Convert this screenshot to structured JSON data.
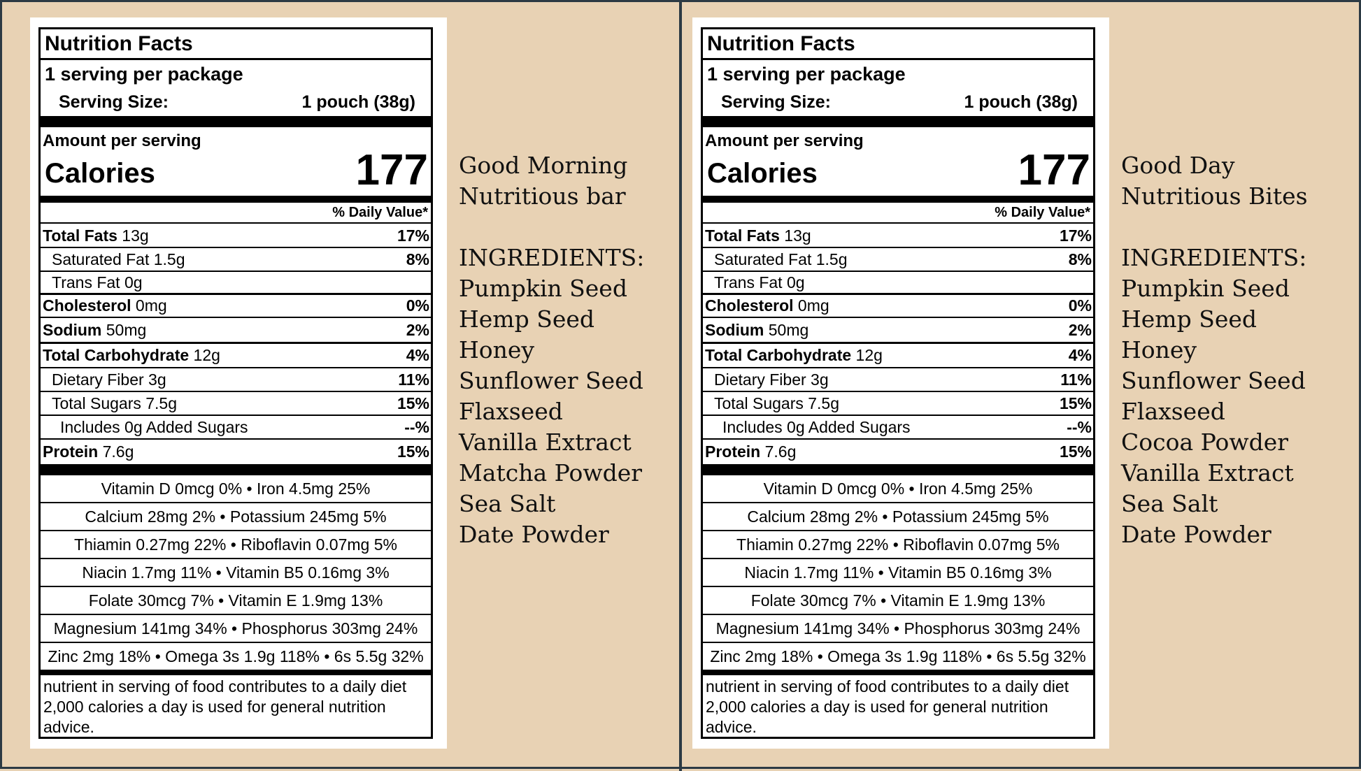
{
  "products": [
    {
      "name_line1": "Good Morning",
      "name_line2": "Nutritious bar",
      "ingredients_heading": "INGREDIENTS:",
      "ingredients": [
        "Pumpkin Seed",
        "Hemp Seed",
        "Honey",
        "Sunflower Seed",
        "Flaxseed",
        "Vanilla Extract",
        "Matcha Powder",
        "Sea Salt",
        "Date Powder"
      ]
    },
    {
      "name_line1": "Good Day",
      "name_line2": "Nutritious Bites",
      "ingredients_heading": "INGREDIENTS:",
      "ingredients": [
        "Pumpkin Seed",
        "Hemp Seed",
        "Honey",
        "Sunflower Seed",
        "Flaxseed",
        "Cocoa Powder",
        "Vanilla Extract",
        "Sea Salt",
        "Date Powder"
      ]
    }
  ],
  "label": {
    "title": "Nutrition Facts",
    "servings": "1 serving per package",
    "serving_size_label": "Serving Size:",
    "serving_size_value": "1 pouch (38g)",
    "amount_per_serving": "Amount per serving",
    "calories_label": "Calories",
    "calories_value": "177",
    "daily_value_heading": "% Daily Value*",
    "nutrients": [
      {
        "bold": "Total Fats",
        "rest": " 13g",
        "pct": "17%",
        "indent": 0
      },
      {
        "bold": "",
        "rest": "Saturated Fat 1.5g",
        "pct": "8%",
        "indent": 1
      },
      {
        "bold": "",
        "rest": "Trans Fat 0g",
        "pct": "",
        "indent": 1
      },
      {
        "bold": "Cholesterol",
        "rest": " 0mg",
        "pct": "0%",
        "indent": 0
      },
      {
        "bold": "Sodium",
        "rest": " 50mg",
        "pct": "2%",
        "indent": 0
      },
      {
        "bold": "Total Carbohydrate",
        "rest": " 12g",
        "pct": "4%",
        "indent": 0
      },
      {
        "bold": "",
        "rest": "Dietary Fiber 3g",
        "pct": "11%",
        "indent": 1
      },
      {
        "bold": "",
        "rest": "Total Sugars 7.5g",
        "pct": "15%",
        "indent": 1
      },
      {
        "bold": "",
        "rest": "Includes 0g Added Sugars",
        "pct": "--%",
        "indent": 2
      },
      {
        "bold": "Protein",
        "rest": " 7.6g",
        "pct": "15%",
        "indent": 0
      }
    ],
    "vitamins": [
      "Vitamin D 0mcg 0% • Iron 4.5mg 25%",
      "Calcium 28mg 2% • Potassium 245mg 5%",
      "Thiamin 0.27mg 22% • Riboflavin 0.07mg 5%",
      "Niacin 1.7mg 11% • Vitamin B5 0.16mg 3%",
      "Folate 30mcg 7% • Vitamin E 1.9mg 13%",
      "Magnesium 141mg 34% • Phosphorus 303mg 24%",
      "Zinc 2mg 18% • Omega 3s 1.9g 118% • 6s 5.5g 32%"
    ],
    "footnote": "nutrient in serving of food contributes to a daily diet 2,000 calories a day is used for general nutrition advice."
  },
  "colors": {
    "background": "#e8d2b4",
    "frame": "#2c3a44"
  }
}
